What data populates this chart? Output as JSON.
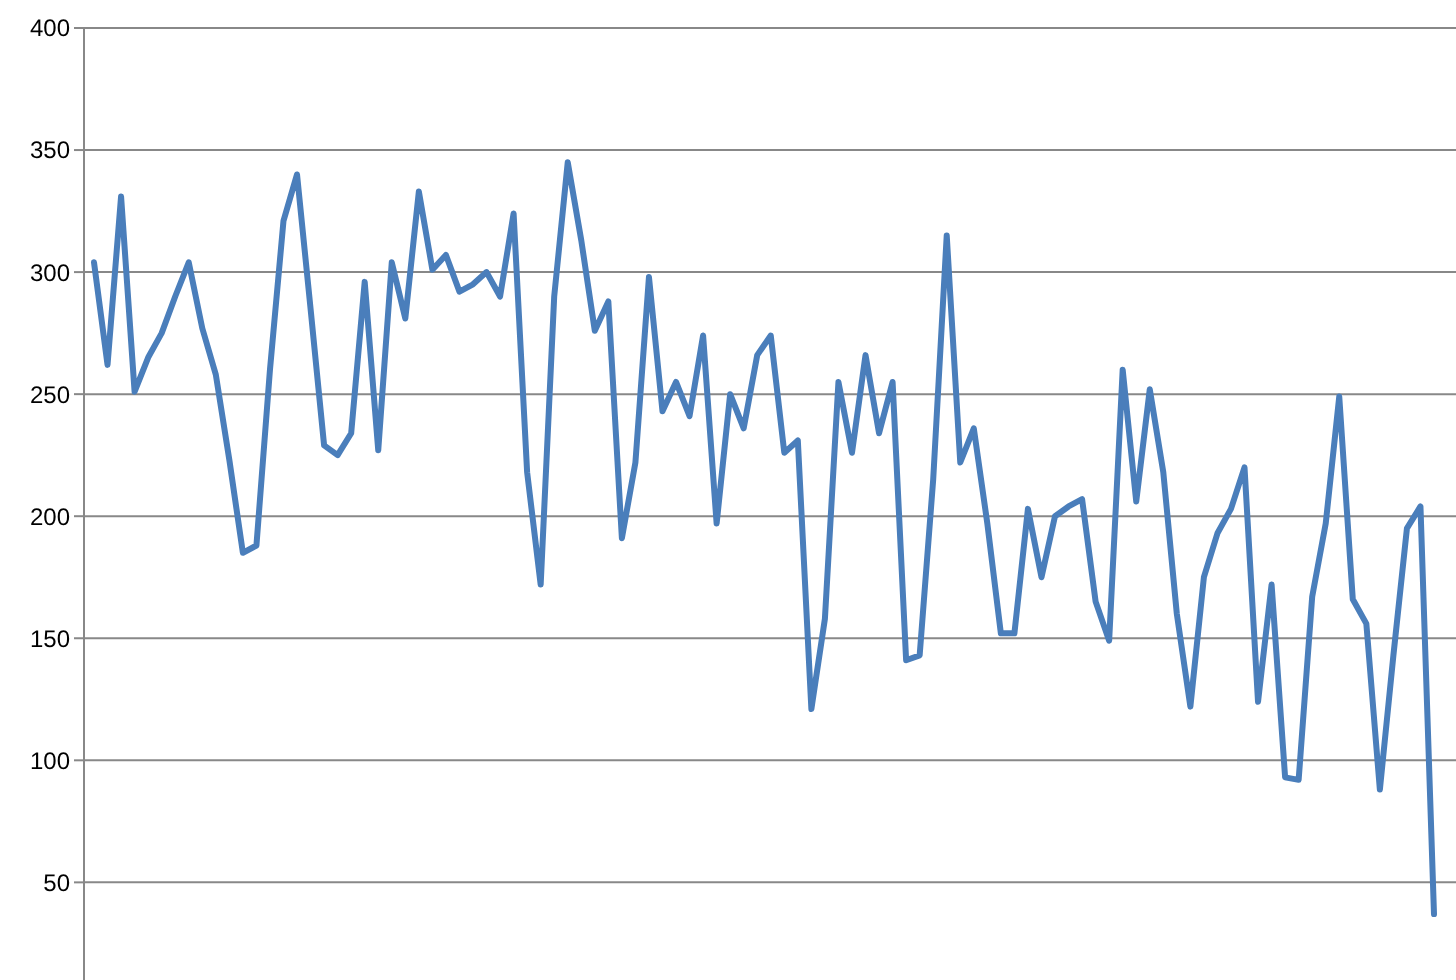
{
  "chart_data": {
    "type": "line",
    "categories": [
      null,
      null,
      null,
      null,
      null,
      null,
      null,
      null,
      null,
      null,
      null,
      null,
      null,
      null,
      null,
      null,
      null,
      null,
      null,
      null,
      null,
      null,
      null,
      null,
      null,
      null,
      null,
      null,
      null,
      null,
      null,
      null,
      null,
      null,
      null,
      null,
      null,
      null,
      null,
      null,
      null,
      null,
      null,
      null,
      null,
      null,
      null,
      null,
      null,
      null,
      null,
      null,
      null,
      null,
      null,
      null,
      null,
      null,
      null,
      null,
      null,
      null,
      null,
      null,
      null,
      null,
      null,
      null,
      null,
      null,
      null,
      null,
      null,
      null,
      null,
      null,
      null,
      null,
      null,
      null,
      null,
      null,
      null,
      null,
      null,
      null,
      null,
      null,
      null,
      null,
      null,
      null,
      null,
      null,
      null,
      null,
      null,
      null,
      null,
      null
    ],
    "series": [
      {
        "color": "#4a7ebb",
        "values": [
          304,
          262,
          331,
          251,
          265,
          275,
          290,
          304,
          277,
          258,
          223,
          185,
          188,
          260,
          321,
          340,
          285,
          229,
          225,
          234,
          296,
          227,
          304,
          281,
          333,
          301,
          307,
          292,
          295,
          300,
          290,
          324,
          218,
          172,
          290,
          345,
          313,
          276,
          288,
          191,
          222,
          298,
          243,
          255,
          241,
          274,
          197,
          250,
          236,
          266,
          274,
          226,
          231,
          121,
          158,
          255,
          226,
          266,
          234,
          255,
          141,
          143,
          215,
          315,
          222,
          236,
          197,
          152,
          152,
          203,
          175,
          200,
          204,
          207,
          165,
          149,
          260,
          206,
          252,
          218,
          160,
          122,
          175,
          193,
          203,
          220,
          124,
          172,
          93,
          92,
          167,
          197,
          249,
          166,
          156,
          88,
          143,
          195,
          204,
          37
        ]
      }
    ],
    "ylim": [
      10,
      400
    ],
    "yticks": [
      50,
      100,
      150,
      200,
      250,
      300,
      350,
      400
    ],
    "grid": "y",
    "marker": "none",
    "line_style": "solid"
  }
}
